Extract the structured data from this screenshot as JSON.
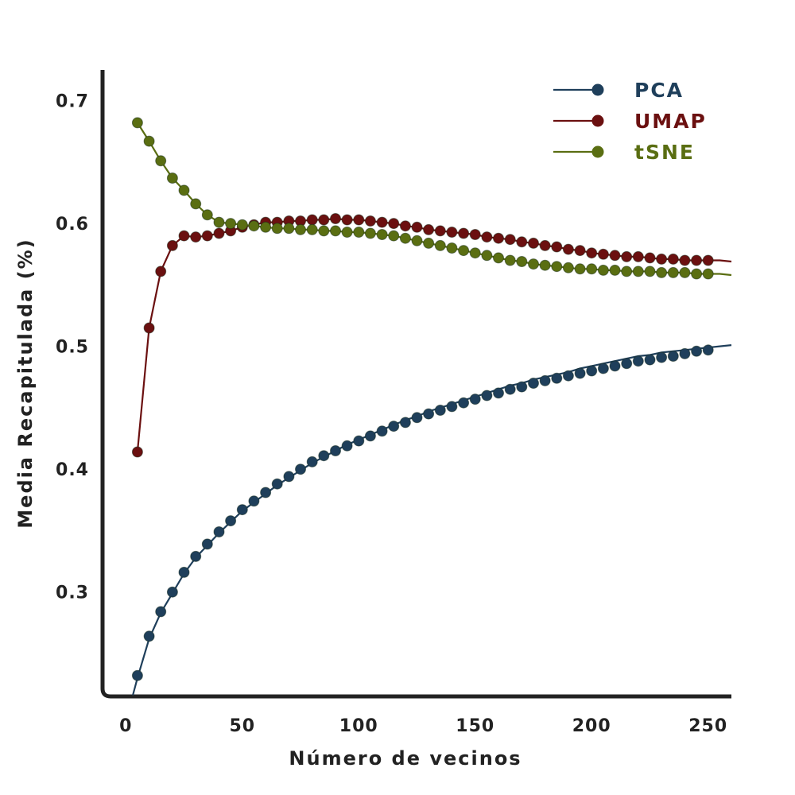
{
  "chart_data": {
    "type": "line",
    "xlabel": "Número de vecinos",
    "ylabel": "Media Recapitulada (%)",
    "xlim": [
      -10,
      260
    ],
    "ylim": [
      0.215,
      0.725
    ],
    "xticks": [
      0,
      50,
      100,
      150,
      200,
      250
    ],
    "xtick_labels": [
      "0",
      "50",
      "100",
      "150",
      "200",
      "250"
    ],
    "yticks": [
      0.3,
      0.4,
      0.5,
      0.6,
      0.7
    ],
    "ytick_labels": [
      "0.3",
      "0.4",
      "0.5",
      "0.6",
      "0.7"
    ],
    "grid": false,
    "legend_position": "top-right",
    "series": [
      {
        "name": "PCA",
        "color": "#1f3f5b",
        "line": {
          "x": [
            3,
            5,
            10,
            15,
            20,
            25,
            30,
            35,
            40,
            45,
            50,
            55,
            60,
            65,
            70,
            75,
            80,
            85,
            90,
            95,
            100,
            105,
            110,
            115,
            120,
            125,
            130,
            135,
            140,
            145,
            150,
            155,
            160,
            165,
            170,
            175,
            180,
            185,
            190,
            195,
            200,
            205,
            210,
            215,
            220,
            225,
            230,
            235,
            240,
            245,
            250,
            255,
            260
          ],
          "y": [
            0.216,
            0.23,
            0.262,
            0.283,
            0.299,
            0.315,
            0.328,
            0.338,
            0.348,
            0.357,
            0.366,
            0.373,
            0.38,
            0.387,
            0.393,
            0.399,
            0.405,
            0.41,
            0.415,
            0.42,
            0.424,
            0.428,
            0.432,
            0.436,
            0.44,
            0.443,
            0.447,
            0.45,
            0.453,
            0.456,
            0.459,
            0.462,
            0.465,
            0.468,
            0.47,
            0.473,
            0.475,
            0.477,
            0.479,
            0.482,
            0.484,
            0.486,
            0.488,
            0.49,
            0.492,
            0.493,
            0.495,
            0.496,
            0.497,
            0.498,
            0.499,
            0.5,
            0.501
          ]
        },
        "x": [
          5,
          10,
          15,
          20,
          25,
          30,
          35,
          40,
          45,
          50,
          55,
          60,
          65,
          70,
          75,
          80,
          85,
          90,
          95,
          100,
          105,
          110,
          115,
          120,
          125,
          130,
          135,
          140,
          145,
          150,
          155,
          160,
          165,
          170,
          175,
          180,
          185,
          190,
          195,
          200,
          205,
          210,
          215,
          220,
          225,
          230,
          235,
          240,
          245,
          250
        ],
        "y": [
          0.232,
          0.264,
          0.284,
          0.3,
          0.316,
          0.329,
          0.339,
          0.349,
          0.358,
          0.367,
          0.374,
          0.381,
          0.388,
          0.394,
          0.4,
          0.406,
          0.411,
          0.415,
          0.419,
          0.423,
          0.427,
          0.431,
          0.435,
          0.438,
          0.442,
          0.445,
          0.448,
          0.451,
          0.454,
          0.457,
          0.46,
          0.462,
          0.465,
          0.467,
          0.47,
          0.472,
          0.474,
          0.476,
          0.478,
          0.48,
          0.482,
          0.484,
          0.486,
          0.488,
          0.489,
          0.491,
          0.492,
          0.494,
          0.496,
          0.497
        ]
      },
      {
        "name": "UMAP",
        "color": "#6b1010",
        "line": {
          "x": [
            5,
            10,
            15,
            20,
            25,
            30,
            35,
            40,
            45,
            50,
            55,
            60,
            65,
            70,
            75,
            80,
            85,
            90,
            95,
            100,
            105,
            110,
            115,
            120,
            125,
            130,
            135,
            140,
            145,
            150,
            155,
            160,
            165,
            170,
            175,
            180,
            185,
            190,
            195,
            200,
            205,
            210,
            215,
            220,
            225,
            230,
            235,
            240,
            245,
            250,
            255,
            260
          ],
          "y": [
            0.414,
            0.515,
            0.561,
            0.582,
            0.59,
            0.589,
            0.59,
            0.592,
            0.594,
            0.597,
            0.599,
            0.601,
            0.601,
            0.602,
            0.602,
            0.603,
            0.603,
            0.604,
            0.603,
            0.603,
            0.602,
            0.601,
            0.6,
            0.598,
            0.597,
            0.595,
            0.594,
            0.593,
            0.592,
            0.591,
            0.589,
            0.588,
            0.587,
            0.585,
            0.584,
            0.582,
            0.581,
            0.579,
            0.578,
            0.576,
            0.575,
            0.574,
            0.573,
            0.573,
            0.572,
            0.571,
            0.571,
            0.57,
            0.57,
            0.57,
            0.57,
            0.569
          ]
        },
        "x": [
          5,
          10,
          15,
          20,
          25,
          30,
          35,
          40,
          45,
          50,
          55,
          60,
          65,
          70,
          75,
          80,
          85,
          90,
          95,
          100,
          105,
          110,
          115,
          120,
          125,
          130,
          135,
          140,
          145,
          150,
          155,
          160,
          165,
          170,
          175,
          180,
          185,
          190,
          195,
          200,
          205,
          210,
          215,
          220,
          225,
          230,
          235,
          240,
          245,
          250
        ],
        "y": [
          0.414,
          0.515,
          0.561,
          0.582,
          0.59,
          0.589,
          0.59,
          0.592,
          0.594,
          0.597,
          0.599,
          0.601,
          0.601,
          0.602,
          0.602,
          0.603,
          0.603,
          0.604,
          0.603,
          0.603,
          0.602,
          0.601,
          0.6,
          0.598,
          0.597,
          0.595,
          0.594,
          0.593,
          0.592,
          0.591,
          0.589,
          0.588,
          0.587,
          0.585,
          0.584,
          0.582,
          0.581,
          0.579,
          0.578,
          0.576,
          0.575,
          0.574,
          0.573,
          0.573,
          0.572,
          0.571,
          0.571,
          0.57,
          0.57,
          0.57
        ]
      },
      {
        "name": "tSNE",
        "color": "#5a6e12",
        "line": {
          "x": [
            5,
            10,
            15,
            20,
            25,
            30,
            35,
            40,
            45,
            50,
            55,
            60,
            65,
            70,
            75,
            80,
            85,
            90,
            95,
            100,
            105,
            110,
            115,
            120,
            125,
            130,
            135,
            140,
            145,
            150,
            155,
            160,
            165,
            170,
            175,
            180,
            185,
            190,
            195,
            200,
            205,
            210,
            215,
            220,
            225,
            230,
            235,
            240,
            245,
            250,
            255,
            260
          ],
          "y": [
            0.682,
            0.667,
            0.651,
            0.637,
            0.627,
            0.616,
            0.607,
            0.601,
            0.6,
            0.599,
            0.598,
            0.597,
            0.596,
            0.596,
            0.595,
            0.595,
            0.594,
            0.594,
            0.593,
            0.593,
            0.592,
            0.591,
            0.59,
            0.588,
            0.586,
            0.584,
            0.582,
            0.58,
            0.578,
            0.576,
            0.574,
            0.572,
            0.57,
            0.569,
            0.567,
            0.566,
            0.565,
            0.564,
            0.563,
            0.563,
            0.562,
            0.562,
            0.561,
            0.561,
            0.561,
            0.56,
            0.56,
            0.56,
            0.559,
            0.559,
            0.559,
            0.558
          ]
        },
        "x": [
          5,
          10,
          15,
          20,
          25,
          30,
          35,
          40,
          45,
          50,
          55,
          60,
          65,
          70,
          75,
          80,
          85,
          90,
          95,
          100,
          105,
          110,
          115,
          120,
          125,
          130,
          135,
          140,
          145,
          150,
          155,
          160,
          165,
          170,
          175,
          180,
          185,
          190,
          195,
          200,
          205,
          210,
          215,
          220,
          225,
          230,
          235,
          240,
          245,
          250
        ],
        "y": [
          0.682,
          0.667,
          0.651,
          0.637,
          0.627,
          0.616,
          0.607,
          0.601,
          0.6,
          0.599,
          0.598,
          0.597,
          0.596,
          0.596,
          0.595,
          0.595,
          0.594,
          0.594,
          0.593,
          0.593,
          0.592,
          0.591,
          0.59,
          0.588,
          0.586,
          0.584,
          0.582,
          0.58,
          0.578,
          0.576,
          0.574,
          0.572,
          0.57,
          0.569,
          0.567,
          0.566,
          0.565,
          0.564,
          0.563,
          0.563,
          0.562,
          0.562,
          0.561,
          0.561,
          0.561,
          0.56,
          0.56,
          0.56,
          0.559,
          0.559
        ]
      }
    ]
  }
}
